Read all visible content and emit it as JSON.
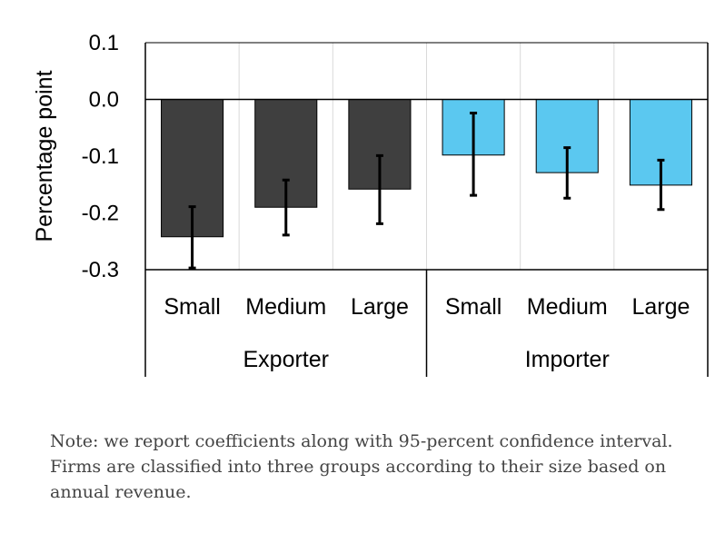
{
  "chart_data": {
    "type": "bar",
    "ylabel": "Percentage point",
    "ylim": [
      -0.3,
      0.1
    ],
    "yticks": [
      0.1,
      0.0,
      -0.1,
      -0.2,
      -0.3
    ],
    "ytick_labels": [
      "0.1",
      "0.0",
      "-0.1",
      "-0.2",
      "-0.3"
    ],
    "grid": "vertical",
    "categories": [
      "Small",
      "Medium",
      "Large",
      "Small",
      "Medium",
      "Large"
    ],
    "groups": [
      "Exporter",
      "Importer"
    ],
    "values": [
      -0.242,
      -0.19,
      -0.158,
      -0.098,
      -0.129,
      -0.151
    ],
    "ci_low": [
      -0.297,
      -0.239,
      -0.219,
      -0.169,
      -0.174,
      -0.194
    ],
    "ci_high": [
      -0.189,
      -0.142,
      -0.099,
      -0.024,
      -0.085,
      -0.107
    ],
    "bar_group": [
      0,
      0,
      0,
      1,
      1,
      1
    ],
    "colors": {
      "Exporter": "#3f3f3f",
      "Importer": "#5bc8f0"
    }
  },
  "note": {
    "lines": [
      "Note: we report coefficients along with 95-percent confidence interval.",
      "Firms are classified into three groups according to their size based on",
      "annual revenue."
    ]
  }
}
